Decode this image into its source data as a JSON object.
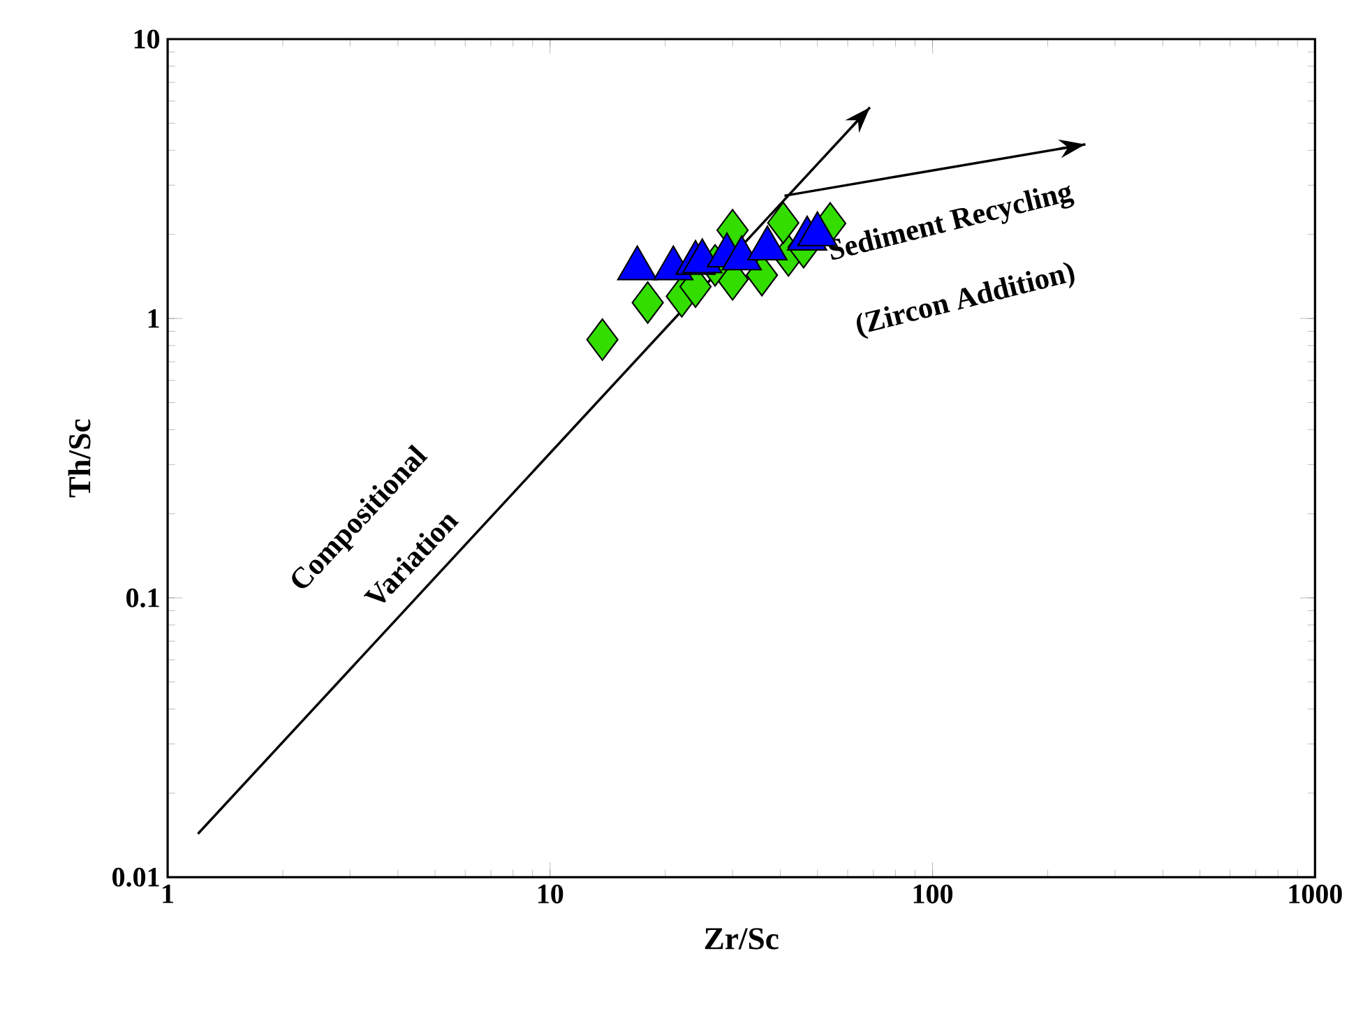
{
  "chart_data": {
    "type": "scatter",
    "xlabel": "Zr/Sc",
    "ylabel": "Th/Sc",
    "log": "xy",
    "xlim": [
      1,
      1000
    ],
    "ylim": [
      0.01,
      10
    ],
    "xticks": [
      1,
      10,
      100,
      1000
    ],
    "yticks": [
      0.01,
      0.1,
      1,
      10
    ],
    "series": [
      {
        "marker": "diamond",
        "color": "#33dd00",
        "x": [
          13.7,
          18,
          22.1,
          24,
          30,
          30,
          35.8,
          42,
          40.7,
          54,
          46,
          27
        ],
        "values": [
          0.84,
          1.14,
          1.2,
          1.3,
          1.38,
          2.07,
          1.43,
          1.68,
          2.2,
          2.19,
          1.8,
          1.55
        ]
      },
      {
        "marker": "triangle",
        "color": "#0000ff",
        "x": [
          16.9,
          21,
          24,
          25,
          29,
          31.7,
          37,
          47,
          50
        ],
        "values": [
          1.51,
          1.51,
          1.58,
          1.6,
          1.68,
          1.64,
          1.78,
          1.93,
          2.0
        ]
      },
      {
        "type": "line",
        "color": "#000000",
        "x": [
          1.2,
          68.6
        ],
        "values": [
          0.0143,
          5.7
        ]
      },
      {
        "type": "line",
        "color": "#000000",
        "x": [
          41,
          251
        ],
        "values": [
          2.75,
          4.2
        ]
      }
    ],
    "annotations": [
      "Compositional",
      "Variation",
      "Sediment Recycling",
      "(Zircon Addition)"
    ]
  }
}
